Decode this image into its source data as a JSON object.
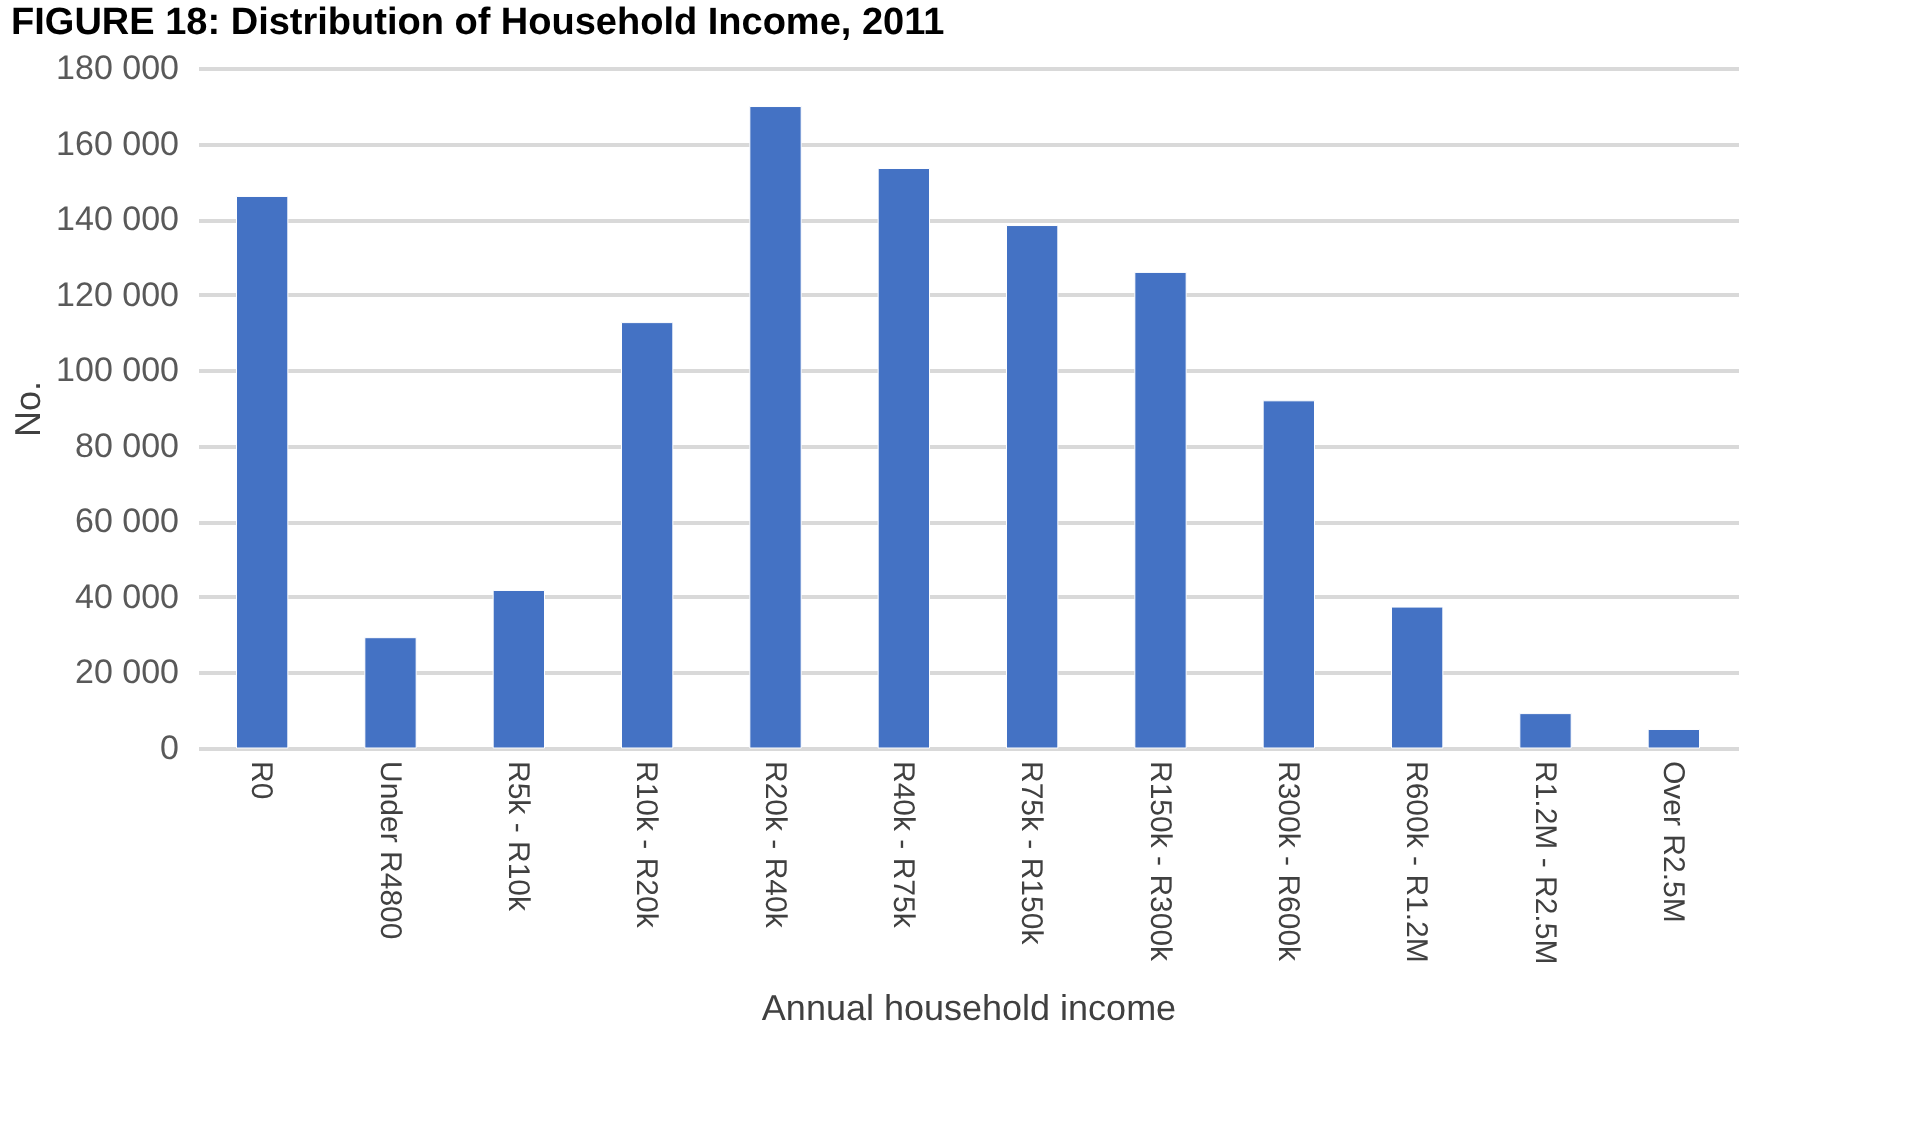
{
  "chart_data": {
    "type": "bar",
    "title": "FIGURE 18: Distribution of Household Income, 2011",
    "xlabel": "Annual household income",
    "ylabel": "No.",
    "categories": [
      "R0",
      "Under R4800",
      "R5k - R10k",
      "R10k - R20k",
      "R20k - R40k",
      "R40k - R75k",
      "R75k - R150k",
      "R150k - R300k",
      "R300k - R600k",
      "R600k - R1.2M",
      "R1.2M - R2.5M",
      "Over R2.5M"
    ],
    "values": [
      146000,
      29200,
      41700,
      112600,
      169800,
      153400,
      138300,
      125900,
      91900,
      37300,
      9100,
      4900
    ],
    "color": "#4472c4",
    "ylim": [
      0,
      180000
    ],
    "yticks": [
      {
        "value": 0,
        "label": "0"
      },
      {
        "value": 20000,
        "label": "20 000"
      },
      {
        "value": 40000,
        "label": "40 000"
      },
      {
        "value": 60000,
        "label": "60 000"
      },
      {
        "value": 80000,
        "label": "80 000"
      },
      {
        "value": 100000,
        "label": "100 000"
      },
      {
        "value": 120000,
        "label": "120 000"
      },
      {
        "value": 140000,
        "label": "140 000"
      },
      {
        "value": 160000,
        "label": "160 000"
      },
      {
        "value": 180000,
        "label": "180 000"
      }
    ],
    "grid": "y"
  }
}
